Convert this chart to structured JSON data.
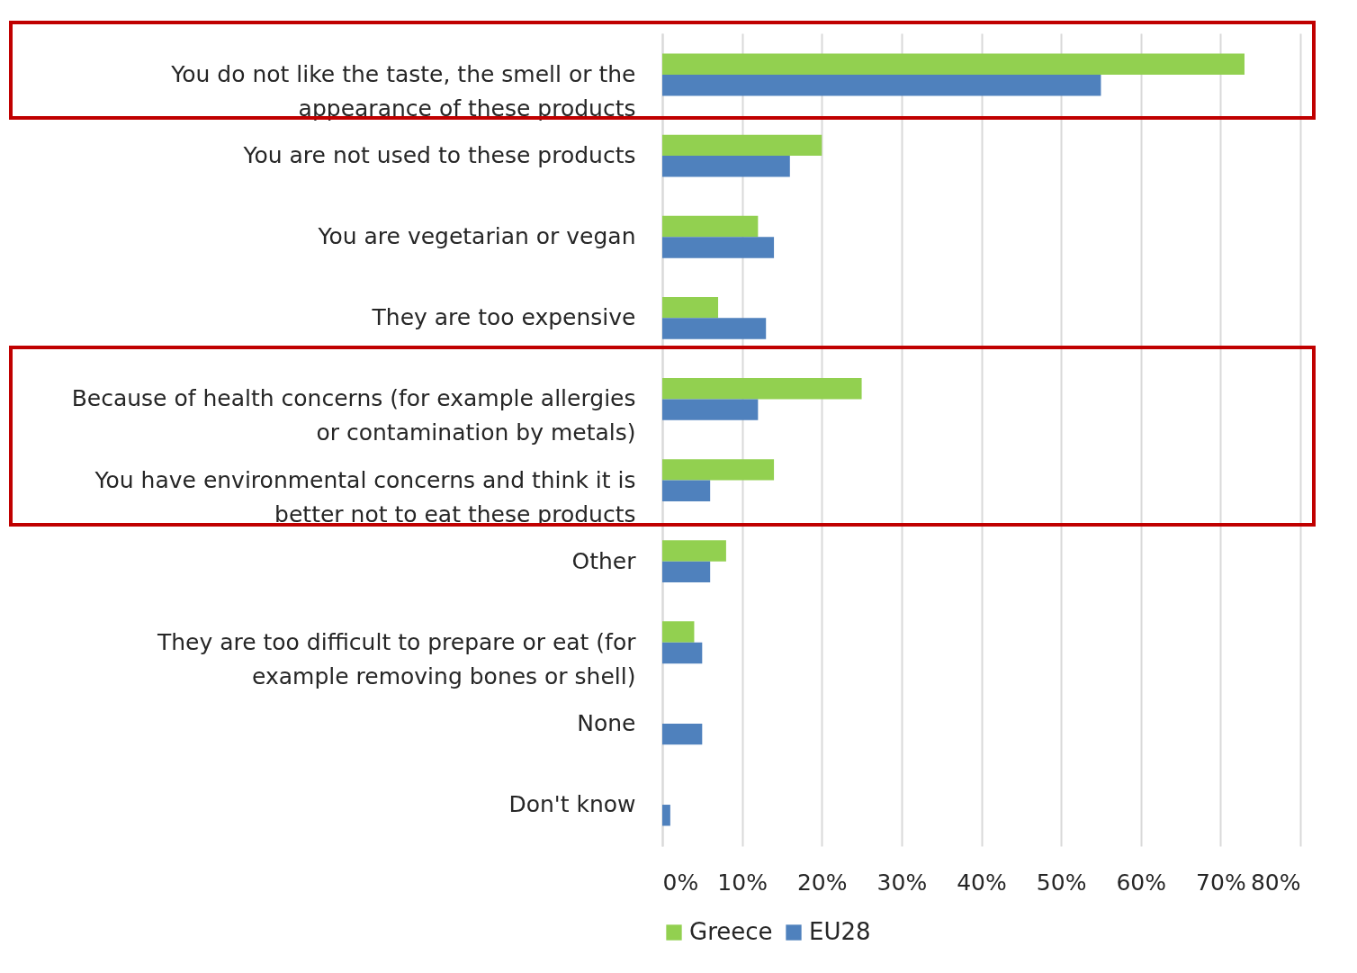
{
  "chart_data": {
    "type": "bar",
    "orientation": "horizontal",
    "categories": [
      "You do not like the taste, the smell or the appearance of these products",
      "You are not used to these products",
      "You are vegetarian or vegan",
      "They are too expensive",
      "Because of health concerns (for example allergies or contamination by metals)",
      "You have environmental concerns and think it is better not to eat these products",
      "Other",
      "They are too difficult to prepare or eat (for example removing bones or shell)",
      "None",
      "Don't know"
    ],
    "series": [
      {
        "name": "Greece",
        "color": "#92d050",
        "values": [
          73,
          20,
          12,
          7,
          25,
          14,
          8,
          4,
          null,
          null
        ]
      },
      {
        "name": "EU28",
        "color": "#4f81bd",
        "values": [
          55,
          16,
          14,
          13,
          12,
          6,
          6,
          5,
          5,
          1
        ]
      }
    ],
    "xlim": [
      0,
      80
    ],
    "xticks": [
      {
        "value": 0,
        "label": "0%"
      },
      {
        "value": 10,
        "label": "10%"
      },
      {
        "value": 20,
        "label": "20%"
      },
      {
        "value": 30,
        "label": "30%"
      },
      {
        "value": 40,
        "label": "40%"
      },
      {
        "value": 50,
        "label": "50%"
      },
      {
        "value": 60,
        "label": "60%"
      },
      {
        "value": 70,
        "label": "70%"
      },
      {
        "value": 80,
        "label": "80%"
      }
    ],
    "grid": "x",
    "legend": "bottom"
  }
}
